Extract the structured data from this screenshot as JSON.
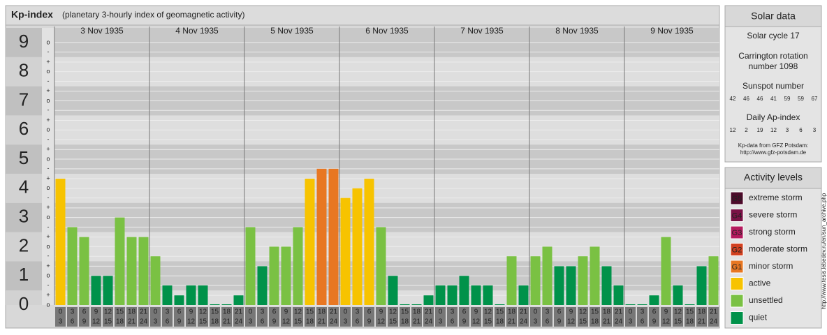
{
  "chart_data": {
    "type": "bar",
    "title": "Kp-index",
    "subtitle": "(planetary 3-hourly index of geomagnetic activity)",
    "categories": [
      "3 Nov 1935",
      "4 Nov 1935",
      "5 Nov 1935",
      "6 Nov 1935",
      "7 Nov 1935",
      "8 Nov 1935",
      "9 Nov 1935"
    ],
    "hours": [
      [
        "0",
        "3"
      ],
      [
        "3",
        "6"
      ],
      [
        "6",
        "9"
      ],
      [
        "9",
        "12"
      ],
      [
        "12",
        "15"
      ],
      [
        "15",
        "18"
      ],
      [
        "18",
        "21"
      ],
      [
        "21",
        "24"
      ]
    ],
    "values": [
      [
        4.33,
        2.67,
        2.33,
        1,
        1,
        3,
        2.33,
        2.33
      ],
      [
        1.67,
        0.67,
        0.33,
        0.67,
        0.67,
        0,
        0,
        0.33
      ],
      [
        2.67,
        1.33,
        2,
        2,
        2.67,
        4.33,
        4.67,
        4.67
      ],
      [
        3.67,
        4,
        4.33,
        2.67,
        1,
        0,
        0,
        0.33
      ],
      [
        0.67,
        0.67,
        1,
        0.67,
        0.67,
        0,
        1.67,
        0.67
      ],
      [
        1.67,
        2,
        1.33,
        1.33,
        1.67,
        2,
        1.33,
        0.67
      ],
      [
        0,
        0,
        0.33,
        2.33,
        0.67,
        0,
        1.33,
        1.67
      ]
    ],
    "bar_colors": [
      [
        "#f7c300",
        "#7ac143",
        "#7ac143",
        "#00924a",
        "#00924a",
        "#7ac143",
        "#7ac143",
        "#7ac143"
      ],
      [
        "#7ac143",
        "#00924a",
        "#00924a",
        "#00924a",
        "#00924a",
        "#00924a",
        "#00924a",
        "#00924a"
      ],
      [
        "#7ac143",
        "#00924a",
        "#7ac143",
        "#7ac143",
        "#7ac143",
        "#f7c300",
        "#e87722",
        "#e87722"
      ],
      [
        "#f7c300",
        "#f7c300",
        "#f7c300",
        "#7ac143",
        "#00924a",
        "#00924a",
        "#00924a",
        "#00924a"
      ],
      [
        "#00924a",
        "#00924a",
        "#00924a",
        "#00924a",
        "#00924a",
        "#00924a",
        "#7ac143",
        "#00924a"
      ],
      [
        "#7ac143",
        "#7ac143",
        "#00924a",
        "#00924a",
        "#7ac143",
        "#7ac143",
        "#00924a",
        "#00924a"
      ],
      [
        "#00924a",
        "#00924a",
        "#00924a",
        "#7ac143",
        "#00924a",
        "#00924a",
        "#00924a",
        "#7ac143"
      ]
    ],
    "ylim": [
      0,
      9.5
    ],
    "yticks": [
      0,
      1,
      2,
      3,
      4,
      5,
      6,
      7,
      8,
      9
    ],
    "yminor_ticks": [
      {
        "value": 0,
        "label": "o"
      },
      {
        "value": 0.33,
        "label": "+"
      },
      {
        "value": 0.67,
        "label": "-"
      },
      {
        "value": 1,
        "label": "o"
      },
      {
        "value": 1.33,
        "label": "+"
      },
      {
        "value": 1.67,
        "label": "-"
      },
      {
        "value": 2,
        "label": "o"
      },
      {
        "value": 2.33,
        "label": "+"
      },
      {
        "value": 2.67,
        "label": "-"
      },
      {
        "value": 3,
        "label": "o"
      },
      {
        "value": 3.33,
        "label": "+"
      },
      {
        "value": 3.67,
        "label": "-"
      },
      {
        "value": 4,
        "label": "o"
      },
      {
        "value": 4.33,
        "label": "+"
      },
      {
        "value": 4.67,
        "label": "-"
      },
      {
        "value": 5,
        "label": "o"
      },
      {
        "value": 5.33,
        "label": "+"
      },
      {
        "value": 5.67,
        "label": "-"
      },
      {
        "value": 6,
        "label": "o"
      },
      {
        "value": 6.33,
        "label": "+"
      },
      {
        "value": 6.67,
        "label": "-"
      },
      {
        "value": 7,
        "label": "o"
      },
      {
        "value": 7.33,
        "label": "+"
      },
      {
        "value": 7.67,
        "label": "-"
      },
      {
        "value": 8,
        "label": "o"
      },
      {
        "value": 8.33,
        "label": "+"
      },
      {
        "value": 8.67,
        "label": "-"
      },
      {
        "value": 9,
        "label": "o"
      }
    ],
    "grid": true
  },
  "solar_data": {
    "title": "Solar data",
    "cycle": "Solar cycle 17",
    "carrington_1": "Carrington rotation",
    "carrington_2": "number 1098",
    "sunspot_title": "Sunspot number",
    "sunspot": [
      42,
      46,
      46,
      41,
      59,
      59,
      67
    ],
    "ap_title": "Daily Ap-index",
    "ap": [
      12,
      2,
      19,
      12,
      3,
      6,
      3
    ],
    "source_1": "Kp-data from GFZ Potsdam:",
    "source_2": "http://www.gfz-potsdam.de"
  },
  "activity_levels": {
    "title": "Activity levels",
    "items": [
      {
        "code": "G5",
        "name": "extreme storm",
        "color": "#4d0a2a"
      },
      {
        "code": "G4",
        "name": "severe storm",
        "color": "#7a1146"
      },
      {
        "code": "G3",
        "name": "strong storm",
        "color": "#b5195e"
      },
      {
        "code": "G2",
        "name": "moderate storm",
        "color": "#d2401f"
      },
      {
        "code": "G1",
        "name": "minor storm",
        "color": "#e87722"
      },
      {
        "name": "active",
        "color": "#f7c300"
      },
      {
        "name": "unsettled",
        "color": "#7ac143"
      },
      {
        "name": "quiet",
        "color": "#00924a"
      }
    ]
  },
  "credit": "http://www.tesis.lebedev.ru/en/sun_archive.php"
}
